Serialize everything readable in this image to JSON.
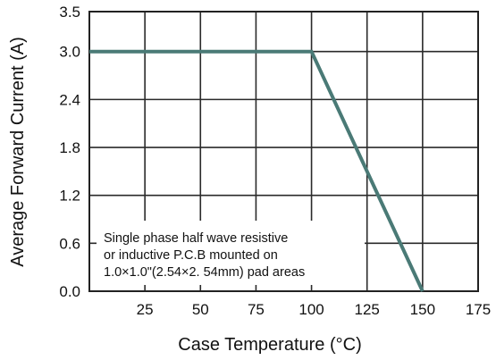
{
  "chart_data": {
    "type": "line",
    "title": "",
    "xlabel": "Case Temperature (°C)",
    "ylabel": "Average Forward Current  (A)",
    "xlim": [
      0,
      175
    ],
    "ylim": [
      0,
      3.5
    ],
    "x_ticks": [
      25,
      50,
      75,
      100,
      125,
      150,
      175
    ],
    "x_tick_labels": [
      "25",
      "50",
      "75",
      "100",
      "125",
      "150",
      "175"
    ],
    "y_ticks": [
      0,
      0.6,
      1.2,
      1.8,
      2.4,
      3.0,
      3.5
    ],
    "y_tick_labels": [
      "0.0",
      "0.6",
      "1.2",
      "1.8",
      "2.4",
      "3.0",
      "3.5"
    ],
    "grid": true,
    "series": [
      {
        "x": [
          0,
          100,
          150
        ],
        "y": [
          3.0,
          3.0,
          0.0
        ],
        "color": "#4a7a76"
      }
    ],
    "annotation": {
      "lines": [
        "Single phase half wave resistive",
        "or inductive P.C.B mounted on",
        "1.0×1.0\"(2.54×2. 54mm) pad  areas"
      ]
    }
  }
}
